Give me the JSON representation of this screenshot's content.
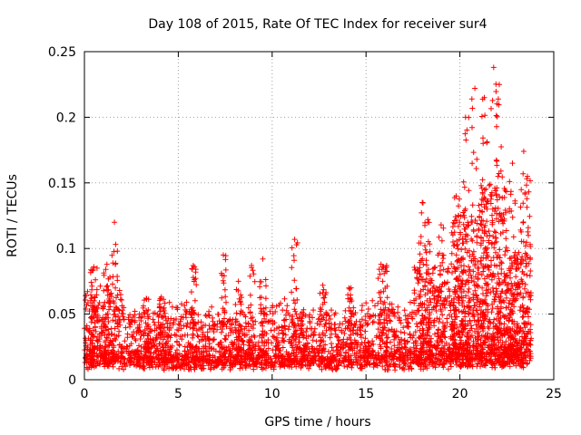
{
  "chart_data": {
    "type": "scatter",
    "title": "Day 108 of 2015, Rate Of TEC Index for receiver sur4",
    "xlabel": "GPS time / hours",
    "ylabel": "ROTI / TECUs",
    "xlim": [
      0,
      25
    ],
    "ylim": [
      0,
      0.25
    ],
    "x_ticks": [
      "0",
      "5",
      "10",
      "15",
      "20",
      "25"
    ],
    "y_ticks": [
      "0",
      "0.05",
      "0.1",
      "0.15",
      "0.2",
      "0.25"
    ],
    "grid": true,
    "marker": "+",
    "color": "#ff0000",
    "seed": 108,
    "density_model": [
      {
        "x": [
          0.0,
          2.0
        ],
        "n": 320,
        "base": 0.013,
        "spread": 0.055
      },
      {
        "x": [
          2.0,
          4.0
        ],
        "n": 260,
        "base": 0.012,
        "spread": 0.04
      },
      {
        "x": [
          4.0,
          6.0
        ],
        "n": 280,
        "base": 0.012,
        "spread": 0.045
      },
      {
        "x": [
          6.0,
          9.0
        ],
        "n": 380,
        "base": 0.012,
        "spread": 0.04
      },
      {
        "x": [
          9.0,
          11.0
        ],
        "n": 240,
        "base": 0.012,
        "spread": 0.045
      },
      {
        "x": [
          11.0,
          14.0
        ],
        "n": 360,
        "base": 0.012,
        "spread": 0.04
      },
      {
        "x": [
          14.0,
          17.5
        ],
        "n": 420,
        "base": 0.012,
        "spread": 0.045
      },
      {
        "x": [
          17.5,
          19.5
        ],
        "n": 380,
        "base": 0.013,
        "spread": 0.075
      },
      {
        "x": [
          19.5,
          21.0
        ],
        "n": 420,
        "base": 0.015,
        "spread": 0.11
      },
      {
        "x": [
          21.0,
          22.5
        ],
        "n": 460,
        "base": 0.015,
        "spread": 0.14
      },
      {
        "x": [
          22.5,
          23.8
        ],
        "n": 320,
        "base": 0.015,
        "spread": 0.09
      }
    ],
    "spikes": [
      {
        "x": 0.5,
        "peak": 0.086
      },
      {
        "x": 1.2,
        "peak": 0.088
      },
      {
        "x": 1.6,
        "peak": 0.12
      },
      {
        "x": 3.3,
        "peak": 0.062
      },
      {
        "x": 4.1,
        "peak": 0.063
      },
      {
        "x": 5.8,
        "peak": 0.087
      },
      {
        "x": 7.4,
        "peak": 0.095
      },
      {
        "x": 8.2,
        "peak": 0.075
      },
      {
        "x": 8.9,
        "peak": 0.087
      },
      {
        "x": 9.5,
        "peak": 0.092
      },
      {
        "x": 11.2,
        "peak": 0.107
      },
      {
        "x": 12.7,
        "peak": 0.072
      },
      {
        "x": 14.2,
        "peak": 0.07
      },
      {
        "x": 15.8,
        "peak": 0.088
      },
      {
        "x": 16.1,
        "peak": 0.087
      },
      {
        "x": 18.0,
        "peak": 0.135
      },
      {
        "x": 18.3,
        "peak": 0.122
      },
      {
        "x": 19.0,
        "peak": 0.118
      },
      {
        "x": 19.8,
        "peak": 0.14
      },
      {
        "x": 20.3,
        "peak": 0.2
      },
      {
        "x": 20.8,
        "peak": 0.222
      },
      {
        "x": 21.3,
        "peak": 0.215
      },
      {
        "x": 21.8,
        "peak": 0.238
      },
      {
        "x": 22.1,
        "peak": 0.225
      },
      {
        "x": 22.8,
        "peak": 0.165
      },
      {
        "x": 23.4,
        "peak": 0.174
      },
      {
        "x": 23.6,
        "peak": 0.155
      }
    ]
  }
}
